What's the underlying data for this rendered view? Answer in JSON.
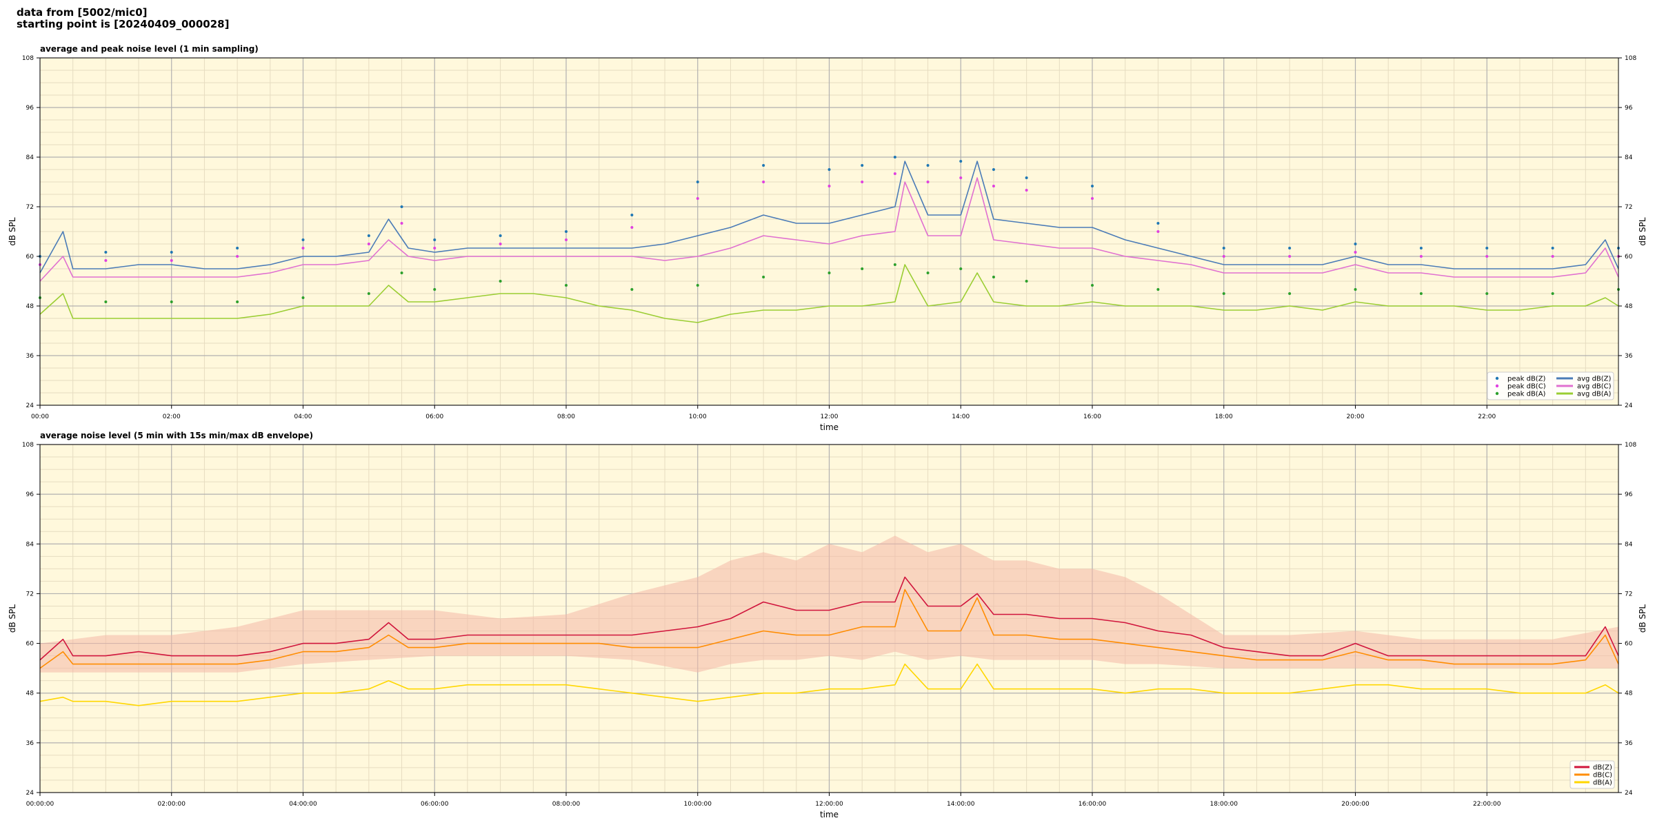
{
  "header": {
    "line1": "data from [5002/mic0]",
    "line2": "starting point is [20240409_000028]"
  },
  "chart_data": [
    {
      "type": "line",
      "title": "average and peak noise level (1 min sampling)",
      "xlabel": "time",
      "ylabel": "dB SPL",
      "xlim": [
        0,
        24
      ],
      "ylim": [
        24,
        108
      ],
      "x_ticks": [
        "00:00",
        "02:00",
        "04:00",
        "06:00",
        "08:00",
        "10:00",
        "12:00",
        "14:00",
        "16:00",
        "18:00",
        "20:00",
        "22:00"
      ],
      "y_ticks": [
        24,
        36,
        48,
        60,
        72,
        84,
        96,
        108
      ],
      "grid": true,
      "legend_position": "bottom-right",
      "series": [
        {
          "name": "peak dB(Z)",
          "kind": "scatter",
          "color": "#1f77b4",
          "x": [
            0,
            1,
            2,
            3,
            4,
            5,
            5.5,
            6,
            7,
            8,
            9,
            10,
            11,
            12,
            12.5,
            13,
            13.5,
            14,
            14.5,
            15,
            16,
            17,
            18,
            19,
            20,
            21,
            22,
            23,
            24
          ],
          "values": [
            60,
            61,
            61,
            62,
            64,
            65,
            72,
            64,
            65,
            66,
            70,
            78,
            82,
            81,
            82,
            84,
            82,
            83,
            81,
            79,
            77,
            68,
            62,
            62,
            63,
            62,
            62,
            62,
            62
          ]
        },
        {
          "name": "peak dB(C)",
          "kind": "scatter",
          "color": "#e040e0",
          "x": [
            0,
            1,
            2,
            3,
            4,
            5,
            5.5,
            6,
            7,
            8,
            9,
            10,
            11,
            12,
            12.5,
            13,
            13.5,
            14,
            14.5,
            15,
            16,
            17,
            18,
            19,
            20,
            21,
            22,
            23,
            24
          ],
          "values": [
            58,
            59,
            59,
            60,
            62,
            63,
            68,
            62,
            63,
            64,
            67,
            74,
            78,
            77,
            78,
            80,
            78,
            79,
            77,
            76,
            74,
            66,
            60,
            60,
            61,
            60,
            60,
            60,
            60
          ]
        },
        {
          "name": "peak dB(A)",
          "kind": "scatter",
          "color": "#2ca02c",
          "x": [
            0,
            1,
            2,
            3,
            4,
            5,
            5.5,
            6,
            7,
            8,
            9,
            10,
            11,
            12,
            12.5,
            13,
            13.5,
            14,
            14.5,
            15,
            16,
            17,
            18,
            19,
            20,
            21,
            22,
            23,
            24
          ],
          "values": [
            50,
            49,
            49,
            49,
            50,
            51,
            56,
            52,
            54,
            53,
            52,
            53,
            55,
            56,
            57,
            58,
            56,
            57,
            55,
            54,
            53,
            52,
            51,
            51,
            52,
            51,
            51,
            51,
            52
          ]
        },
        {
          "name": "avg dB(Z)",
          "kind": "line",
          "color": "#4a7bb7",
          "x": [
            0,
            0.35,
            0.5,
            1,
            1.5,
            2,
            2.5,
            3,
            3.5,
            4,
            4.5,
            5,
            5.3,
            5.6,
            6,
            6.5,
            7,
            7.5,
            8,
            8.5,
            9,
            9.5,
            10,
            10.5,
            11,
            11.5,
            12,
            12.5,
            13,
            13.15,
            13.5,
            14,
            14.25,
            14.5,
            15,
            15.5,
            16,
            16.5,
            17,
            17.5,
            18,
            18.5,
            19,
            19.5,
            20,
            20.5,
            21,
            21.5,
            22,
            22.5,
            23,
            23.5,
            23.8,
            24
          ],
          "values": [
            56,
            66,
            57,
            57,
            58,
            58,
            57,
            57,
            58,
            60,
            60,
            61,
            69,
            62,
            61,
            62,
            62,
            62,
            62,
            62,
            62,
            63,
            65,
            67,
            70,
            68,
            68,
            70,
            72,
            83,
            70,
            70,
            83,
            69,
            68,
            67,
            67,
            64,
            62,
            60,
            58,
            58,
            58,
            58,
            60,
            58,
            58,
            57,
            57,
            57,
            57,
            58,
            64,
            57
          ]
        },
        {
          "name": "avg dB(C)",
          "kind": "line",
          "color": "#e070d0",
          "x": [
            0,
            0.35,
            0.5,
            1,
            1.5,
            2,
            2.5,
            3,
            3.5,
            4,
            4.5,
            5,
            5.3,
            5.6,
            6,
            6.5,
            7,
            7.5,
            8,
            8.5,
            9,
            9.5,
            10,
            10.5,
            11,
            11.5,
            12,
            12.5,
            13,
            13.15,
            13.5,
            14,
            14.25,
            14.5,
            15,
            15.5,
            16,
            16.5,
            17,
            17.5,
            18,
            18.5,
            19,
            19.5,
            20,
            20.5,
            21,
            21.5,
            22,
            22.5,
            23,
            23.5,
            23.8,
            24
          ],
          "values": [
            54,
            60,
            55,
            55,
            55,
            55,
            55,
            55,
            56,
            58,
            58,
            59,
            64,
            60,
            59,
            60,
            60,
            60,
            60,
            60,
            60,
            59,
            60,
            62,
            65,
            64,
            63,
            65,
            66,
            78,
            65,
            65,
            79,
            64,
            63,
            62,
            62,
            60,
            59,
            58,
            56,
            56,
            56,
            56,
            58,
            56,
            56,
            55,
            55,
            55,
            55,
            56,
            62,
            55
          ]
        },
        {
          "name": "avg dB(A)",
          "kind": "line",
          "color": "#9acd32",
          "x": [
            0,
            0.35,
            0.5,
            1,
            1.5,
            2,
            2.5,
            3,
            3.5,
            4,
            4.5,
            5,
            5.3,
            5.6,
            6,
            6.5,
            7,
            7.5,
            8,
            8.5,
            9,
            9.5,
            10,
            10.5,
            11,
            11.5,
            12,
            12.5,
            13,
            13.15,
            13.5,
            14,
            14.25,
            14.5,
            15,
            15.5,
            16,
            16.5,
            17,
            17.5,
            18,
            18.5,
            19,
            19.5,
            20,
            20.5,
            21,
            21.5,
            22,
            22.5,
            23,
            23.5,
            23.8,
            24
          ],
          "values": [
            46,
            51,
            45,
            45,
            45,
            45,
            45,
            45,
            46,
            48,
            48,
            48,
            53,
            49,
            49,
            50,
            51,
            51,
            50,
            48,
            47,
            45,
            44,
            46,
            47,
            47,
            48,
            48,
            49,
            58,
            48,
            49,
            56,
            49,
            48,
            48,
            49,
            48,
            48,
            48,
            47,
            47,
            48,
            47,
            49,
            48,
            48,
            48,
            47,
            47,
            48,
            48,
            50,
            48
          ]
        }
      ]
    },
    {
      "type": "line",
      "title": "average noise level (5 min with 15s min/max dB envelope)",
      "xlabel": "time",
      "ylabel": "dB SPL",
      "xlim": [
        0,
        24
      ],
      "ylim": [
        24,
        108
      ],
      "x_ticks": [
        "00:00:00",
        "02:00:00",
        "04:00:00",
        "06:00:00",
        "08:00:00",
        "10:00:00",
        "12:00:00",
        "14:00:00",
        "16:00:00",
        "18:00:00",
        "20:00:00",
        "22:00:00"
      ],
      "y_ticks": [
        24,
        36,
        48,
        60,
        72,
        84,
        96,
        108
      ],
      "grid": true,
      "legend_position": "bottom-right",
      "envelope": {
        "color": "#f4b8a8",
        "x": [
          0,
          1,
          2,
          3,
          4,
          5,
          6,
          7,
          8,
          9,
          10,
          10.5,
          11,
          11.5,
          12,
          12.5,
          13,
          13.5,
          14,
          14.5,
          15,
          15.5,
          16,
          16.5,
          17,
          18,
          19,
          20,
          21,
          22,
          23,
          24
        ],
        "min": [
          53,
          53,
          53,
          53,
          55,
          56,
          57,
          57,
          57,
          56,
          53,
          55,
          56,
          56,
          57,
          56,
          58,
          56,
          57,
          56,
          56,
          56,
          56,
          55,
          55,
          54,
          54,
          54,
          54,
          54,
          54,
          54
        ],
        "max": [
          60,
          62,
          62,
          64,
          68,
          68,
          68,
          66,
          67,
          72,
          76,
          80,
          82,
          80,
          84,
          82,
          86,
          82,
          84,
          80,
          80,
          78,
          78,
          76,
          72,
          62,
          62,
          63,
          61,
          61,
          61,
          64
        ]
      },
      "series": [
        {
          "name": "dB(Z)",
          "color": "#d0143c",
          "x": [
            0,
            0.35,
            0.5,
            1,
            1.5,
            2,
            2.5,
            3,
            3.5,
            4,
            4.5,
            5,
            5.3,
            5.6,
            6,
            6.5,
            7,
            7.5,
            8,
            8.5,
            9,
            9.5,
            10,
            10.5,
            11,
            11.5,
            12,
            12.5,
            13,
            13.15,
            13.5,
            14,
            14.25,
            14.5,
            15,
            15.5,
            16,
            16.5,
            17,
            17.5,
            18,
            18.5,
            19,
            19.5,
            20,
            20.5,
            21,
            21.5,
            22,
            22.5,
            23,
            23.5,
            23.8,
            24
          ],
          "values": [
            56,
            61,
            57,
            57,
            58,
            57,
            57,
            57,
            58,
            60,
            60,
            61,
            65,
            61,
            61,
            62,
            62,
            62,
            62,
            62,
            62,
            63,
            64,
            66,
            70,
            68,
            68,
            70,
            70,
            76,
            69,
            69,
            72,
            67,
            67,
            66,
            66,
            65,
            63,
            62,
            59,
            58,
            57,
            57,
            60,
            57,
            57,
            57,
            57,
            57,
            57,
            57,
            64,
            57
          ]
        },
        {
          "name": "dB(C)",
          "color": "#ff8c00",
          "x": [
            0,
            0.35,
            0.5,
            1,
            1.5,
            2,
            2.5,
            3,
            3.5,
            4,
            4.5,
            5,
            5.3,
            5.6,
            6,
            6.5,
            7,
            7.5,
            8,
            8.5,
            9,
            9.5,
            10,
            10.5,
            11,
            11.5,
            12,
            12.5,
            13,
            13.15,
            13.5,
            14,
            14.25,
            14.5,
            15,
            15.5,
            16,
            16.5,
            17,
            17.5,
            18,
            18.5,
            19,
            19.5,
            20,
            20.5,
            21,
            21.5,
            22,
            22.5,
            23,
            23.5,
            23.8,
            24
          ],
          "values": [
            54,
            58,
            55,
            55,
            55,
            55,
            55,
            55,
            56,
            58,
            58,
            59,
            62,
            59,
            59,
            60,
            60,
            60,
            60,
            60,
            59,
            59,
            59,
            61,
            63,
            62,
            62,
            64,
            64,
            73,
            63,
            63,
            71,
            62,
            62,
            61,
            61,
            60,
            59,
            58,
            57,
            56,
            56,
            56,
            58,
            56,
            56,
            55,
            55,
            55,
            55,
            56,
            62,
            55
          ]
        },
        {
          "name": "dB(A)",
          "color": "#ffd700",
          "x": [
            0,
            0.35,
            0.5,
            1,
            1.5,
            2,
            2.5,
            3,
            3.5,
            4,
            4.5,
            5,
            5.3,
            5.6,
            6,
            6.5,
            7,
            7.5,
            8,
            8.5,
            9,
            9.5,
            10,
            10.5,
            11,
            11.5,
            12,
            12.5,
            13,
            13.15,
            13.5,
            14,
            14.25,
            14.5,
            15,
            15.5,
            16,
            16.5,
            17,
            17.5,
            18,
            18.5,
            19,
            19.5,
            20,
            20.5,
            21,
            21.5,
            22,
            22.5,
            23,
            23.5,
            23.8,
            24
          ],
          "values": [
            46,
            47,
            46,
            46,
            45,
            46,
            46,
            46,
            47,
            48,
            48,
            49,
            51,
            49,
            49,
            50,
            50,
            50,
            50,
            49,
            48,
            47,
            46,
            47,
            48,
            48,
            49,
            49,
            50,
            55,
            49,
            49,
            55,
            49,
            49,
            49,
            49,
            48,
            49,
            49,
            48,
            48,
            48,
            49,
            50,
            50,
            49,
            49,
            49,
            48,
            48,
            48,
            50,
            48
          ]
        }
      ]
    }
  ]
}
